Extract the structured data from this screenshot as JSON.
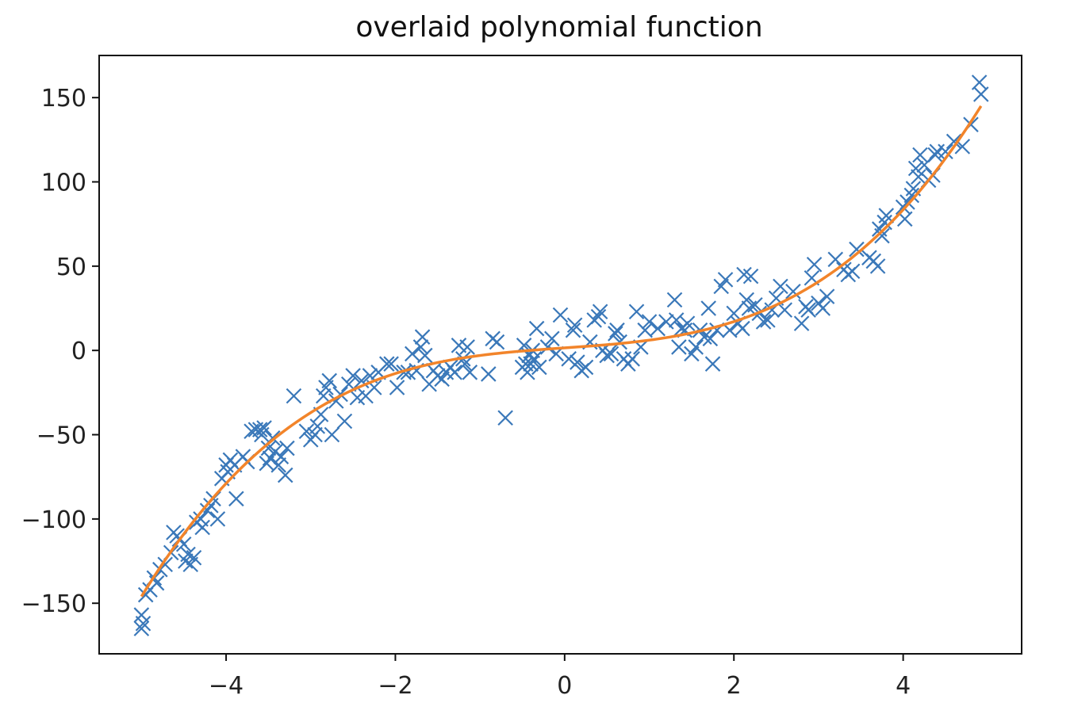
{
  "chart_data": {
    "type": "scatter",
    "title": "overlaid polynomial function",
    "xlabel": "",
    "ylabel": "",
    "xlim": [
      -5.5,
      5.4
    ],
    "ylim": [
      -180,
      175
    ],
    "x_ticks": [
      -4,
      -2,
      0,
      2,
      4
    ],
    "x_tick_labels": [
      "−4",
      "−2",
      "0",
      "2",
      "4"
    ],
    "y_ticks": [
      -150,
      -100,
      -50,
      0,
      50,
      100,
      150
    ],
    "y_tick_labels": [
      "−150",
      "−100",
      "−50",
      "0",
      "50",
      "100",
      "150"
    ],
    "grid": false,
    "legend": "none",
    "colors": {
      "points": "#3a78b9",
      "curve": "#f2842a",
      "axes": "#111111"
    },
    "series": [
      {
        "type": "scatter",
        "marker": "x",
        "points": [
          [
            -5.0,
            -165
          ],
          [
            -5.0,
            -157
          ],
          [
            -4.98,
            -162
          ],
          [
            -4.95,
            -145
          ],
          [
            -4.9,
            -142
          ],
          [
            -4.85,
            -135
          ],
          [
            -4.82,
            -138
          ],
          [
            -4.78,
            -130
          ],
          [
            -4.72,
            -127
          ],
          [
            -4.65,
            -120
          ],
          [
            -4.62,
            -108
          ],
          [
            -4.58,
            -110
          ],
          [
            -4.55,
            -112
          ],
          [
            -4.5,
            -115
          ],
          [
            -4.48,
            -125
          ],
          [
            -4.45,
            -121
          ],
          [
            -4.42,
            -127
          ],
          [
            -4.38,
            -123
          ],
          [
            -4.35,
            -102
          ],
          [
            -4.3,
            -100
          ],
          [
            -4.28,
            -105
          ],
          [
            -4.22,
            -95
          ],
          [
            -4.18,
            -92
          ],
          [
            -4.15,
            -88
          ],
          [
            -4.1,
            -100
          ],
          [
            -4.05,
            -76
          ],
          [
            -4.0,
            -68
          ],
          [
            -3.98,
            -72
          ],
          [
            -3.95,
            -65
          ],
          [
            -3.9,
            -68
          ],
          [
            -3.88,
            -88
          ],
          [
            -3.8,
            -63
          ],
          [
            -3.75,
            -66
          ],
          [
            -3.7,
            -48
          ],
          [
            -3.65,
            -47
          ],
          [
            -3.6,
            -47
          ],
          [
            -3.58,
            -50
          ],
          [
            -3.55,
            -46
          ],
          [
            -3.52,
            -67
          ],
          [
            -3.5,
            -58
          ],
          [
            -3.48,
            -64
          ],
          [
            -3.45,
            -52
          ],
          [
            -3.42,
            -60
          ],
          [
            -3.38,
            -68
          ],
          [
            -3.35,
            -63
          ],
          [
            -3.3,
            -74
          ],
          [
            -3.28,
            -58
          ],
          [
            -3.2,
            -27
          ],
          [
            -3.05,
            -48
          ],
          [
            -3.0,
            -53
          ],
          [
            -2.95,
            -50
          ],
          [
            -2.92,
            -45
          ],
          [
            -2.88,
            -38
          ],
          [
            -2.85,
            -27
          ],
          [
            -2.82,
            -22
          ],
          [
            -2.78,
            -18
          ],
          [
            -2.75,
            -50
          ],
          [
            -2.7,
            -30
          ],
          [
            -2.65,
            -26
          ],
          [
            -2.6,
            -42
          ],
          [
            -2.55,
            -20
          ],
          [
            -2.5,
            -15
          ],
          [
            -2.45,
            -28
          ],
          [
            -2.4,
            -18
          ],
          [
            -2.35,
            -27
          ],
          [
            -2.3,
            -15
          ],
          [
            -2.25,
            -22
          ],
          [
            -2.2,
            -13
          ],
          [
            -2.1,
            -8
          ],
          [
            -2.05,
            -8
          ],
          [
            -1.98,
            -22
          ],
          [
            -1.9,
            -13
          ],
          [
            -1.85,
            -13
          ],
          [
            -1.8,
            -2
          ],
          [
            -1.75,
            -12
          ],
          [
            -1.7,
            2
          ],
          [
            -1.68,
            8
          ],
          [
            -1.65,
            -3
          ],
          [
            -1.6,
            -20
          ],
          [
            -1.55,
            -12
          ],
          [
            -1.5,
            -15
          ],
          [
            -1.45,
            -17
          ],
          [
            -1.4,
            -13
          ],
          [
            -1.35,
            -10
          ],
          [
            -1.3,
            -13
          ],
          [
            -1.25,
            3
          ],
          [
            -1.2,
            -5
          ],
          [
            -1.18,
            -8
          ],
          [
            -1.15,
            2
          ],
          [
            -1.12,
            -13
          ],
          [
            -0.9,
            -14
          ],
          [
            -0.85,
            7
          ],
          [
            -0.8,
            5
          ],
          [
            -0.7,
            -40
          ],
          [
            -0.5,
            -10
          ],
          [
            -0.48,
            3
          ],
          [
            -0.46,
            -8
          ],
          [
            -0.44,
            -13
          ],
          [
            -0.42,
            -3
          ],
          [
            -0.4,
            -8
          ],
          [
            -0.38,
            0
          ],
          [
            -0.36,
            -5
          ],
          [
            -0.33,
            13
          ],
          [
            -0.3,
            -10
          ],
          [
            -0.2,
            2
          ],
          [
            -0.15,
            7
          ],
          [
            -0.1,
            -2
          ],
          [
            -0.05,
            21
          ],
          [
            0.05,
            -5
          ],
          [
            0.1,
            12
          ],
          [
            0.12,
            15
          ],
          [
            0.15,
            -7
          ],
          [
            0.2,
            -12
          ],
          [
            0.25,
            -10
          ],
          [
            0.3,
            5
          ],
          [
            0.35,
            18
          ],
          [
            0.4,
            20
          ],
          [
            0.42,
            23
          ],
          [
            0.45,
            0
          ],
          [
            0.5,
            -3
          ],
          [
            0.55,
            -2
          ],
          [
            0.6,
            10
          ],
          [
            0.62,
            12
          ],
          [
            0.65,
            5
          ],
          [
            0.7,
            -5
          ],
          [
            0.75,
            -8
          ],
          [
            0.8,
            -5
          ],
          [
            0.85,
            23
          ],
          [
            0.9,
            2
          ],
          [
            0.95,
            12
          ],
          [
            1.0,
            17
          ],
          [
            1.1,
            13
          ],
          [
            1.2,
            17
          ],
          [
            1.3,
            30
          ],
          [
            1.32,
            18
          ],
          [
            1.35,
            2
          ],
          [
            1.38,
            13
          ],
          [
            1.42,
            12
          ],
          [
            1.45,
            16
          ],
          [
            1.5,
            -2
          ],
          [
            1.55,
            2
          ],
          [
            1.6,
            12
          ],
          [
            1.65,
            8
          ],
          [
            1.7,
            25
          ],
          [
            1.72,
            7
          ],
          [
            1.75,
            -8
          ],
          [
            1.8,
            12
          ],
          [
            1.85,
            38
          ],
          [
            1.9,
            42
          ],
          [
            1.95,
            12
          ],
          [
            2.0,
            22
          ],
          [
            2.05,
            16
          ],
          [
            2.1,
            13
          ],
          [
            2.12,
            45
          ],
          [
            2.15,
            30
          ],
          [
            2.18,
            25
          ],
          [
            2.2,
            44
          ],
          [
            2.25,
            27
          ],
          [
            2.3,
            22
          ],
          [
            2.35,
            17
          ],
          [
            2.4,
            18
          ],
          [
            2.45,
            24
          ],
          [
            2.5,
            31
          ],
          [
            2.55,
            38
          ],
          [
            2.6,
            24
          ],
          [
            2.7,
            35
          ],
          [
            2.8,
            16
          ],
          [
            2.85,
            26
          ],
          [
            2.88,
            24
          ],
          [
            2.92,
            43
          ],
          [
            2.95,
            51
          ],
          [
            3.0,
            28
          ],
          [
            3.05,
            25
          ],
          [
            3.1,
            32
          ],
          [
            3.2,
            54
          ],
          [
            3.3,
            48
          ],
          [
            3.35,
            45
          ],
          [
            3.4,
            47
          ],
          [
            3.45,
            60
          ],
          [
            3.6,
            55
          ],
          [
            3.65,
            53
          ],
          [
            3.7,
            50
          ],
          [
            3.72,
            72
          ],
          [
            3.75,
            68
          ],
          [
            3.78,
            76
          ],
          [
            3.8,
            80
          ],
          [
            4.0,
            85
          ],
          [
            4.02,
            78
          ],
          [
            4.05,
            88
          ],
          [
            4.1,
            92
          ],
          [
            4.12,
            96
          ],
          [
            4.15,
            108
          ],
          [
            4.18,
            103
          ],
          [
            4.2,
            116
          ],
          [
            4.25,
            110
          ],
          [
            4.3,
            101
          ],
          [
            4.35,
            104
          ],
          [
            4.38,
            116
          ],
          [
            4.4,
            118
          ],
          [
            4.5,
            118
          ],
          [
            4.6,
            124
          ],
          [
            4.7,
            121
          ],
          [
            4.8,
            134
          ],
          [
            4.9,
            159
          ],
          [
            4.92,
            152
          ]
        ]
      },
      {
        "type": "line",
        "fit": "cubic",
        "coefficients": {
          "a3": 1.05,
          "a2": 0.05,
          "a1": 3.5,
          "a0": 1.5
        },
        "x_range": [
          -5.0,
          4.92
        ]
      }
    ]
  }
}
